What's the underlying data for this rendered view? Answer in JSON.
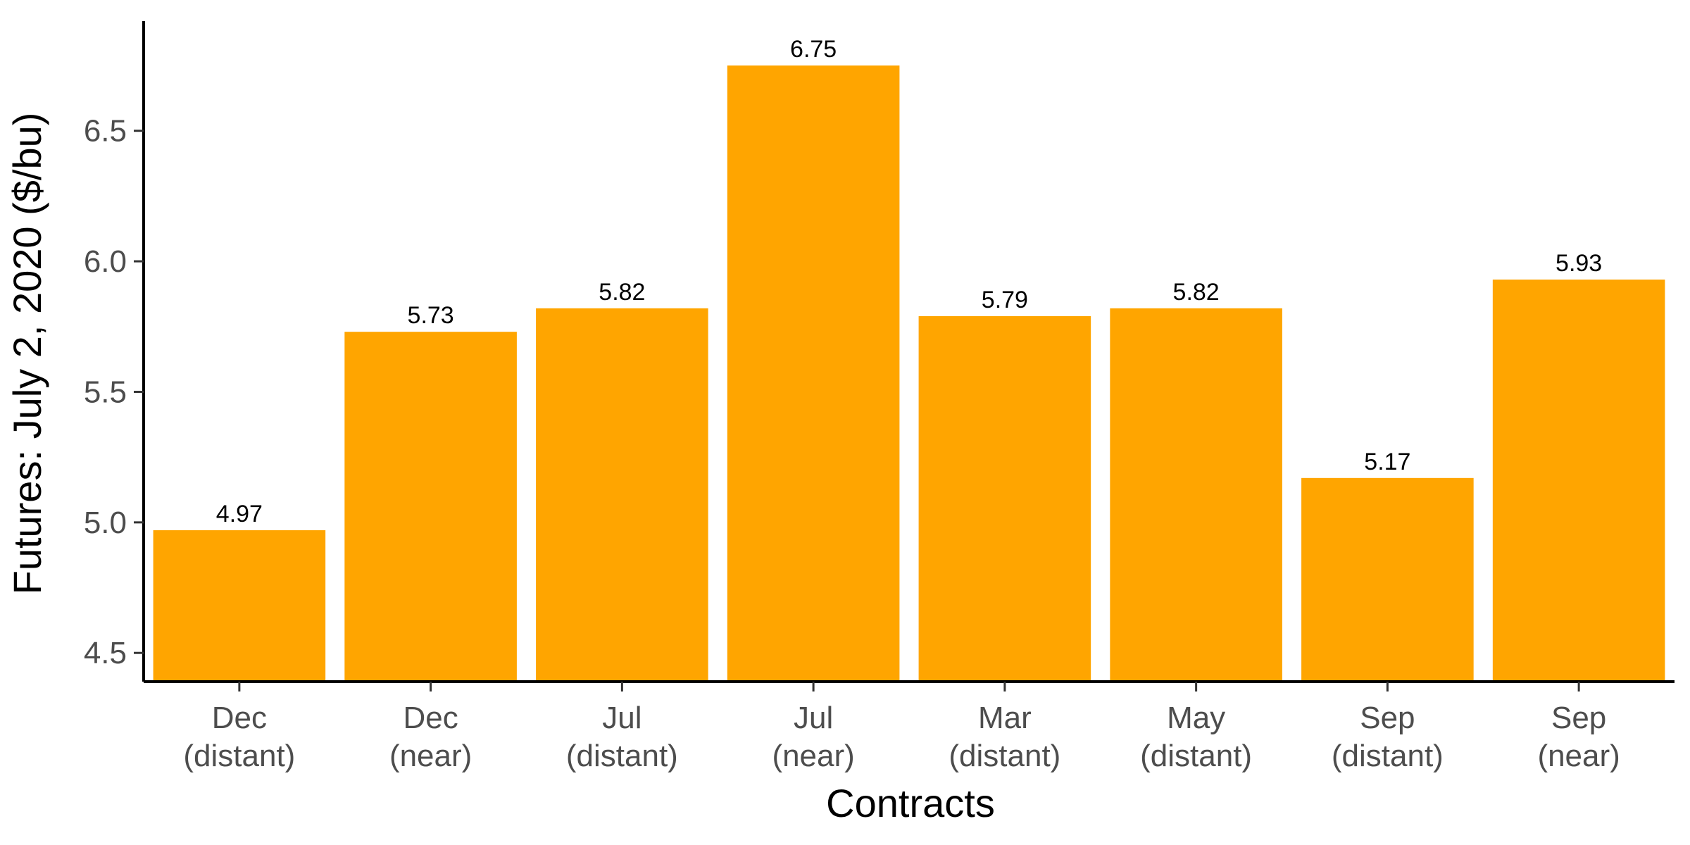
{
  "chart_data": {
    "type": "bar",
    "categories": [
      [
        "Dec",
        "(distant)"
      ],
      [
        "Dec",
        "(near)"
      ],
      [
        "Jul",
        "(distant)"
      ],
      [
        "Jul",
        "(near)"
      ],
      [
        "Mar",
        "(distant)"
      ],
      [
        "May",
        "(distant)"
      ],
      [
        "Sep",
        "(distant)"
      ],
      [
        "Sep",
        "(near)"
      ]
    ],
    "values": [
      4.97,
      5.73,
      5.82,
      6.75,
      5.79,
      5.82,
      5.17,
      5.93
    ],
    "data_labels": [
      "4.97",
      "5.73",
      "5.82",
      "6.75",
      "5.79",
      "5.82",
      "5.17",
      "5.93"
    ],
    "xlabel": "Contracts",
    "ylabel": "Futures: July 2, 2020 ($/bu)",
    "ylim": [
      4.39,
      6.92
    ],
    "yticks": [
      4.5,
      5.0,
      5.5,
      6.0,
      6.5
    ],
    "ytick_labels": [
      "4.5",
      "5.0",
      "5.5",
      "6.0",
      "6.5"
    ],
    "bar_color": "#FFA500",
    "grid": false,
    "legend": "none"
  }
}
